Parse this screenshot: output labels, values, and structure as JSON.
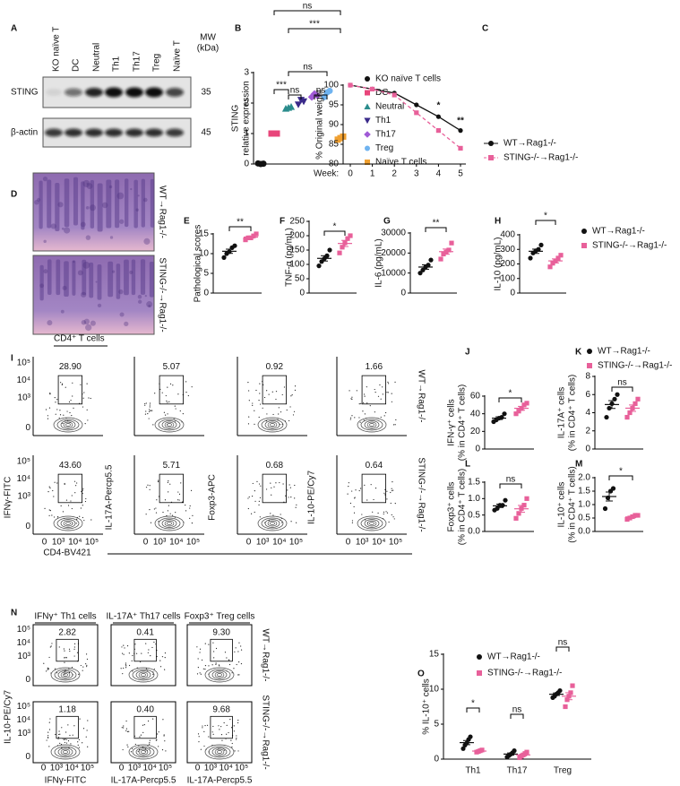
{
  "panel_labels": [
    "A",
    "B",
    "C",
    "D",
    "E",
    "F",
    "G",
    "H",
    "I",
    "J",
    "K",
    "L",
    "M",
    "N",
    "O"
  ],
  "blot": {
    "lanes": [
      "KO naïve T",
      "DC",
      "Neutral",
      "Th1",
      "Th17",
      "Treg",
      "Naïve T"
    ],
    "mw_header": [
      "MW",
      "(kDa)"
    ],
    "rows": [
      {
        "name": "STING",
        "mw": "35"
      },
      {
        "name": "β-actin",
        "mw": "45"
      }
    ]
  },
  "histology": {
    "rows": [
      "WT→Rag1-/-",
      "STING-/-→Rag1-/-"
    ]
  },
  "flow_I": {
    "title": "CD4⁺ T cells",
    "ticks": [
      "0",
      "10³",
      "10⁴",
      "10⁵"
    ],
    "ylabels": [
      "IFNγ-FITC",
      "IL-17A-Percp5.5",
      "Foxp3-APC",
      "IL-10-PE/Cy7"
    ],
    "xlabel": "CD4-BV421",
    "rows": [
      "WT→Rag1-/-",
      "STING-/-→Rag1-/-"
    ],
    "percents": [
      [
        "28.90",
        "5.07",
        "0.92",
        "1.66"
      ],
      [
        "43.60",
        "5.71",
        "0.68",
        "0.64"
      ]
    ]
  },
  "flow_N": {
    "titles": [
      "IFNγ⁺ Th1 cells",
      "IL-17A⁺ Th17 cells",
      "Foxp3⁺ Treg cells"
    ],
    "ticks": [
      "0",
      "10³",
      "10⁴",
      "10⁵"
    ],
    "ylabel": "IL-10-PE/Cy7",
    "xlabels": [
      "IFNγ-FITC",
      "IL-17A-Percp5.5",
      "IL-17A-Percp5.5"
    ],
    "rows": [
      "WT→Rag1-/-",
      "STING-/-→Rag1-/-"
    ],
    "percents": [
      [
        "2.82",
        "0.41",
        "9.30"
      ],
      [
        "1.18",
        "0.40",
        "9.68"
      ]
    ]
  },
  "chart_data": [
    {
      "type": "dot",
      "ylabel": [
        "STING",
        "relative expression"
      ],
      "ylim": [
        0,
        3
      ],
      "yticks": [
        0,
        1,
        2,
        3
      ],
      "annotations": [
        "***",
        "ns",
        "***",
        "ns",
        "ns",
        "ns"
      ],
      "series": [
        {
          "name": "KO naïve T cells",
          "color": "#111111",
          "marker": "circle",
          "values": [
            0.02,
            0,
            0.01
          ]
        },
        {
          "name": "DC",
          "color": "#e8457a",
          "marker": "square",
          "values": [
            1,
            1,
            1
          ]
        },
        {
          "name": "Neutral",
          "color": "#2a8c8c",
          "marker": "triangle-up",
          "values": [
            1.82,
            1.85,
            1.88
          ]
        },
        {
          "name": "Th1",
          "color": "#3a2a8a",
          "marker": "triangle-down",
          "values": [
            1.95,
            2.1,
            2.05
          ]
        },
        {
          "name": "Th17",
          "color": "#a05ad6",
          "marker": "diamond",
          "values": [
            2.2,
            2.3,
            2.25
          ]
        },
        {
          "name": "Treg",
          "color": "#6fb3f0",
          "marker": "circle",
          "values": [
            2.2,
            2.35,
            2.4
          ]
        },
        {
          "name": "Naïve T cells",
          "color": "#f0a030",
          "marker": "square",
          "values": [
            0.8,
            0.85,
            0.9
          ]
        }
      ]
    },
    {
      "type": "line",
      "ylabel": "% Original weight",
      "xlabel": "Week:",
      "x": [
        0,
        1,
        2,
        3,
        4,
        5
      ],
      "xlim": [
        0,
        5
      ],
      "xticks": [
        0,
        1,
        2,
        3,
        4,
        5
      ],
      "ylim": [
        80,
        100
      ],
      "yticks": [
        80,
        85,
        90,
        95,
        100
      ],
      "annotations": [
        "*",
        "**"
      ],
      "series": [
        {
          "name": "WT→Rag1-/-",
          "color": "#111111",
          "marker": "circle",
          "linestyle": "solid",
          "values": [
            100,
            99,
            98,
            95,
            92,
            88.5
          ]
        },
        {
          "name": "STING-/-→Rag1-/-",
          "color": "#e8609a",
          "marker": "square",
          "linestyle": "dashed",
          "values": [
            100,
            99,
            97.5,
            93,
            88.5,
            84
          ]
        }
      ]
    },
    {
      "type": "dot",
      "ylabel": [
        "Pathological scores"
      ],
      "ylim": [
        0,
        15
      ],
      "yticks": [
        0,
        5,
        10,
        15
      ],
      "mean_sem": true,
      "annotations": [
        "**"
      ],
      "series": [
        {
          "color": "#111111",
          "marker": "circle",
          "values": [
            9,
            10,
            10.5,
            11.5,
            12
          ]
        },
        {
          "color": "#e8609a",
          "marker": "square",
          "values": [
            13.5,
            14,
            14,
            14.5,
            15
          ]
        }
      ]
    },
    {
      "type": "dot",
      "ylabel": [
        "TNF-α (pg/mL)"
      ],
      "ylim": [
        0,
        250
      ],
      "yticks": [
        0,
        50,
        100,
        150,
        200,
        250
      ],
      "mean_sem": true,
      "annotations": [
        "*"
      ],
      "series": [
        {
          "color": "#111111",
          "marker": "circle",
          "values": [
            95,
            110,
            120,
            130,
            150
          ]
        },
        {
          "color": "#e8609a",
          "marker": "square",
          "values": [
            140,
            160,
            175,
            190,
            200
          ]
        }
      ]
    },
    {
      "type": "dot",
      "ylabel": [
        "IL-6 (pg/mL)"
      ],
      "ylim": [
        0,
        30000
      ],
      "yticks": [
        0,
        10000,
        20000,
        30000
      ],
      "mean_sem": true,
      "annotations": [
        "**"
      ],
      "series": [
        {
          "color": "#111111",
          "marker": "circle",
          "values": [
            10000,
            11500,
            13000,
            14000,
            16500
          ]
        },
        {
          "color": "#e8609a",
          "marker": "square",
          "values": [
            17000,
            19500,
            20500,
            21500,
            25000
          ]
        }
      ]
    },
    {
      "type": "dot",
      "ylabel": [
        "IL-10 (pg/mL)"
      ],
      "ylim": [
        0,
        400
      ],
      "yticks": [
        0,
        100,
        200,
        300,
        400
      ],
      "mean_sem": true,
      "annotations": [
        "*"
      ],
      "series": [
        {
          "name": "WT→Rag1-/-",
          "color": "#111111",
          "marker": "circle",
          "values": [
            240,
            275,
            290,
            300,
            330
          ]
        },
        {
          "name": "STING-/-→Rag1-/-",
          "color": "#e8609a",
          "marker": "square",
          "values": [
            180,
            205,
            220,
            240,
            260
          ]
        }
      ]
    },
    {
      "type": "dot",
      "ylabel": [
        "IFN-γ⁺ cells",
        "(% in CD4⁺ T cells)"
      ],
      "ylim": [
        0,
        60
      ],
      "yticks": [
        0,
        20,
        40,
        60
      ],
      "mean_sem": true,
      "annotations": [
        "*"
      ],
      "series": [
        {
          "color": "#111111",
          "marker": "circle",
          "values": [
            31,
            33,
            35,
            36,
            40
          ]
        },
        {
          "color": "#e8609a",
          "marker": "square",
          "values": [
            40,
            43,
            46,
            50,
            52
          ]
        }
      ]
    },
    {
      "type": "dot",
      "ylabel": [
        "IL-17A⁺ cells",
        "(% in CD4⁺ T cells)"
      ],
      "ylim": [
        0,
        8
      ],
      "yticks": [
        0,
        2,
        4,
        6,
        8
      ],
      "mean_sem": true,
      "annotations": [
        "ns"
      ],
      "series": [
        {
          "name": "WT→Rag1-/-",
          "color": "#111111",
          "marker": "circle",
          "values": [
            3.5,
            4.5,
            5,
            5.5,
            6
          ]
        },
        {
          "name": "STING-/-→Rag1-/-",
          "color": "#e8609a",
          "marker": "square",
          "values": [
            3.5,
            4,
            4.5,
            5,
            5.5
          ]
        }
      ]
    },
    {
      "type": "dot",
      "ylabel": [
        "Foxp3⁺ cells",
        "(% in CD4⁺ T cells)"
      ],
      "ylim": [
        0,
        1.5
      ],
      "yticks": [
        {
          "value": 0,
          "label": "0.0"
        },
        0.5,
        {
          "value": 1,
          "label": "1.0"
        },
        1.5
      ],
      "mean_sem": true,
      "annotations": [
        "ns"
      ],
      "series": [
        {
          "color": "#111111",
          "marker": "circle",
          "values": [
            0.65,
            0.7,
            0.8,
            0.8,
            0.95
          ]
        },
        {
          "color": "#e8609a",
          "marker": "square",
          "values": [
            0.4,
            0.55,
            0.7,
            0.8,
            1.0
          ]
        }
      ]
    },
    {
      "type": "dot",
      "ylabel": [
        "IL-10⁺ cells",
        "(% in CD4⁺ T cells)"
      ],
      "ylim": [
        0,
        2
      ],
      "yticks": [
        {
          "value": 0,
          "label": "0.0"
        },
        0.5,
        {
          "value": 1,
          "label": "1.0"
        },
        1.5,
        {
          "value": 2,
          "label": "2.0"
        }
      ],
      "mean_sem": true,
      "annotations": [
        "*"
      ],
      "series": [
        {
          "color": "#111111",
          "marker": "circle",
          "values": [
            0.85,
            1.25,
            1.5,
            1.6
          ]
        },
        {
          "color": "#e8609a",
          "marker": "square",
          "values": [
            0.45,
            0.5,
            0.55,
            0.6,
            0.6
          ]
        }
      ]
    },
    {
      "type": "dot",
      "categories": [
        "Th1",
        "Th17",
        "Treg"
      ],
      "ylabel": [
        "% IL-10⁺ cells"
      ],
      "ylim": [
        0,
        15
      ],
      "yticks": [
        0,
        5,
        10,
        15
      ],
      "mean_sem": true,
      "annotations": [
        "*",
        "ns",
        "ns"
      ],
      "series": [
        {
          "name": "WT→Rag1-/-",
          "color": "#111111",
          "marker": "circle",
          "values": [
            [
              1.5,
              2,
              2.3,
              2.8,
              3.2
            ],
            [
              0.3,
              0.5,
              0.7,
              0.9,
              1.2
            ],
            [
              8.8,
              9,
              9.3,
              9.5,
              9.8
            ]
          ]
        },
        {
          "name": "STING-/-→Rag1-/-",
          "color": "#e8609a",
          "marker": "square",
          "values": [
            [
              1,
              1.1,
              1.2,
              1.3
            ],
            [
              0.2,
              0.4,
              0.6,
              0.8,
              1.0
            ],
            [
              7.5,
              8.5,
              9,
              9.5,
              10.5
            ]
          ]
        }
      ]
    }
  ]
}
